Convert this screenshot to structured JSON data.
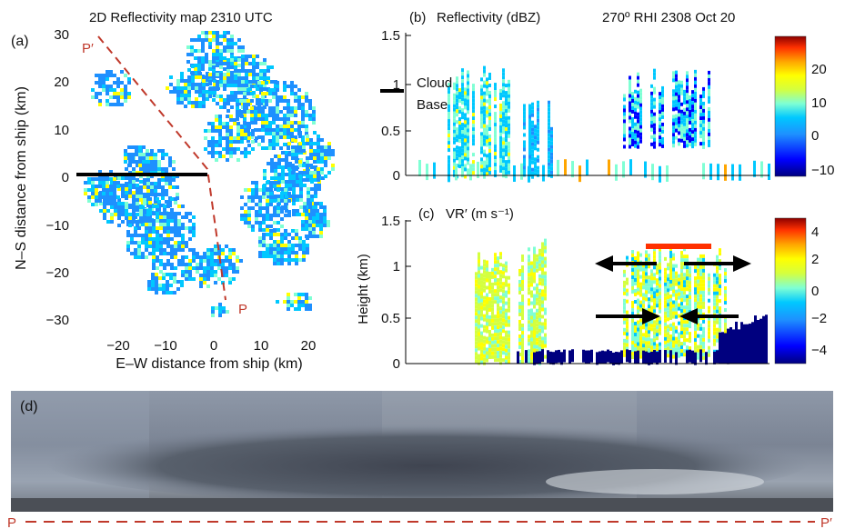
{
  "colors": {
    "section_line": "#c0392b",
    "arrow": "#000000",
    "colormap": [
      "#00007f",
      "#0000ff",
      "#1e90ff",
      "#00c8ff",
      "#7fffd4",
      "#d4ff3f",
      "#ffff00",
      "#ffa500",
      "#ff3000",
      "#8b0000"
    ]
  },
  "panel_a": {
    "label": "(a)",
    "title": "2D Reflectivity map 2310 UTC",
    "xlabel": "E–W distance from ship (km)",
    "ylabel": "N–S distance from ship (km)",
    "xticks": [
      "−20",
      "−10",
      "0",
      "10",
      "20"
    ],
    "yticks": [
      "30",
      "20",
      "10",
      "0",
      "−10",
      "−20",
      "−30"
    ],
    "p_label": "P",
    "p_prime_label": "P′"
  },
  "panel_b": {
    "label": "(b)",
    "title": "Reflectivity (dBZ)",
    "header": "270º RHI 2308 Oct 20",
    "yticks": [
      "1.5",
      "1",
      "0.5",
      "0"
    ],
    "cloud_base_label_1": "Cloud",
    "cloud_base_label_2": "Base",
    "colorbar_ticks": [
      "20",
      "10",
      "0",
      "−10"
    ]
  },
  "panel_c": {
    "label": "(c)",
    "title": "VR′ (m s⁻¹)",
    "ylabel": "Height (km)",
    "yticks": [
      "1.5",
      "1",
      "0.5",
      "0"
    ],
    "colorbar_ticks": [
      "4",
      "2",
      "0",
      "−2",
      "−4"
    ]
  },
  "panel_d": {
    "label": "(d)",
    "p_label": "P",
    "p_prime_label": "P′"
  }
}
